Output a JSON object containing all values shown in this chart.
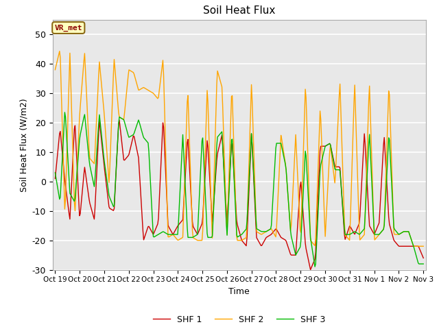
{
  "title": "Soil Heat Flux",
  "xlabel": "Time",
  "ylabel": "Soil Heat Flux (W/m2)",
  "ylim": [
    -30,
    55
  ],
  "yticks": [
    -30,
    -20,
    -10,
    0,
    10,
    20,
    30,
    40,
    50
  ],
  "annotation_text": "VR_met",
  "annotation_color": "#8B0000",
  "annotation_bg": "#FFFFC0",
  "annotation_border": "#8B6914",
  "legend_labels": [
    "SHF 1",
    "SHF 2",
    "SHF 3"
  ],
  "colors": {
    "SHF1": "#CC0000",
    "SHF2": "#FFA500",
    "SHF3": "#00BB00"
  },
  "background_color": "#E8E8E8",
  "xtick_labels": [
    "Oct 19",
    "Oct 20",
    "Oct 21",
    "Oct 22",
    "Oct 23",
    "Oct 24",
    "Oct 25",
    "Oct 26",
    "Oct 27",
    "Oct 28",
    "Oct 29",
    "Oct 30",
    "Oct 31",
    "Nov 1",
    "Nov 2",
    "Nov 3"
  ],
  "SHF1": [
    1,
    18,
    0,
    -13,
    21,
    -13,
    5,
    -7,
    -13,
    21,
    5,
    -9,
    -10,
    22,
    7,
    9,
    16,
    8,
    -20,
    -15,
    -18,
    -14,
    22,
    -15,
    -18,
    -15,
    -13,
    16,
    -15,
    -18,
    -14,
    15,
    -14,
    9,
    16,
    -14,
    15,
    -14,
    -20,
    -22,
    17,
    -19,
    -22,
    -19,
    -18,
    -16,
    -19,
    -20,
    -25,
    -25,
    1,
    -22,
    -30,
    -26,
    12,
    12,
    13,
    5,
    5,
    -20,
    -15,
    -18,
    -14,
    17,
    -15,
    -18,
    -14,
    16,
    -14,
    -20,
    -22,
    -22,
    -22,
    -22,
    -22,
    -26
  ],
  "SHF2": [
    38,
    45,
    -12,
    44,
    -12,
    23,
    44,
    8,
    6,
    41,
    23,
    -1,
    42,
    22,
    21,
    38,
    37,
    31,
    32,
    31,
    30,
    28,
    42,
    -19,
    -18,
    -20,
    -19,
    32,
    -19,
    -20,
    -20,
    33,
    -20,
    38,
    32,
    -19,
    33,
    -20,
    -20,
    -19,
    34,
    -17,
    -18,
    -17,
    -16,
    -19,
    16,
    5,
    -18,
    16,
    -20,
    34,
    -20,
    -22,
    26,
    -19,
    13,
    -1,
    34,
    -18,
    -20,
    34,
    -20,
    -18,
    34,
    -20,
    -18,
    -16,
    34,
    -18,
    -18,
    -17,
    -17,
    -22,
    -22,
    -22
  ],
  "SHF3": [
    3,
    -7,
    25,
    -4,
    -7,
    15,
    23,
    6,
    -2,
    23,
    7,
    -5,
    -9,
    22,
    21,
    15,
    16,
    21,
    15,
    13,
    -19,
    -18,
    -17,
    -18,
    -18,
    -18,
    16,
    -19,
    -19,
    -18,
    17,
    -19,
    -19,
    15,
    17,
    -19,
    17,
    -19,
    -18,
    -16,
    17,
    -16,
    -17,
    -17,
    -16,
    13,
    13,
    5,
    -18,
    -25,
    -22,
    12,
    -19,
    -30,
    5,
    12,
    13,
    4,
    4,
    -18,
    -18,
    -17,
    -18,
    -16,
    17,
    -18,
    -18,
    -16,
    17,
    -16,
    -18,
    -17,
    -17,
    -22,
    -28,
    -28
  ]
}
